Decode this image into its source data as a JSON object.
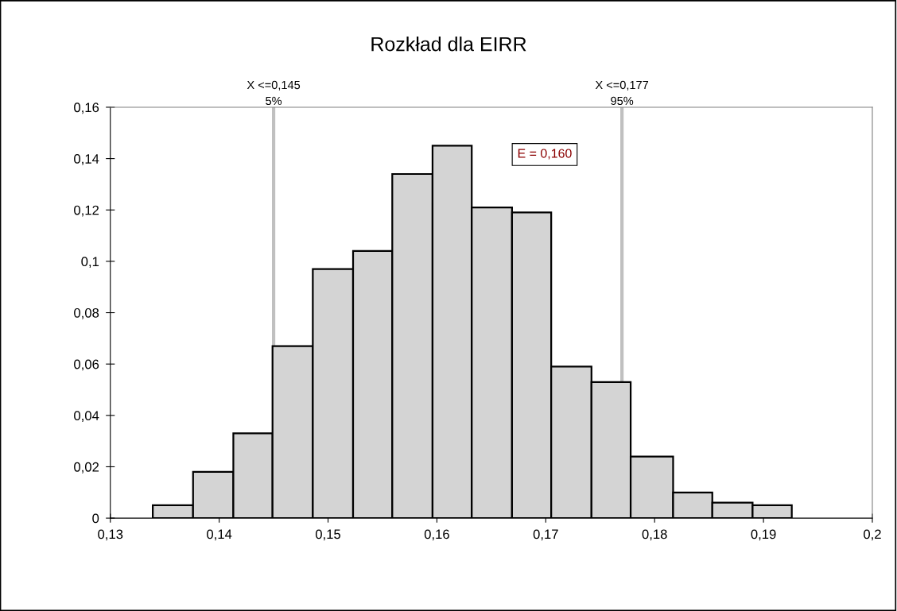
{
  "chart_data": {
    "type": "histogram",
    "title": "Rozkład dla EIRR",
    "bins": [
      0.1339,
      0.1376,
      0.1413,
      0.1449,
      0.1486,
      0.1523,
      0.1559,
      0.1596,
      0.1632,
      0.1669,
      0.1705,
      0.1742,
      0.1778,
      0.1817,
      0.1853,
      0.189,
      0.1926
    ],
    "values": [
      0.005,
      0.018,
      0.033,
      0.067,
      0.097,
      0.104,
      0.134,
      0.145,
      0.121,
      0.119,
      0.059,
      0.053,
      0.024,
      0.01,
      0.006,
      0.005
    ],
    "color": "#d4d4d4",
    "xlim": [
      0.13,
      0.2
    ],
    "xticks": [
      {
        "value": 0.13,
        "label": "0,13"
      },
      {
        "value": 0.14,
        "label": "0,14"
      },
      {
        "value": 0.15,
        "label": "0,15"
      },
      {
        "value": 0.16,
        "label": "0,16"
      },
      {
        "value": 0.17,
        "label": "0,17"
      },
      {
        "value": 0.18,
        "label": "0,18"
      },
      {
        "value": 0.19,
        "label": "0,19"
      },
      {
        "value": 0.2,
        "label": "0,2"
      }
    ],
    "ylim": [
      0,
      0.16
    ],
    "yticks": [
      0,
      {
        "value": 0.02,
        "label": "0,02"
      },
      {
        "value": 0.04,
        "label": "0,04"
      },
      {
        "value": 0.06,
        "label": "0,06"
      },
      {
        "value": 0.08,
        "label": "0,08"
      },
      {
        "value": 0.1,
        "label": "0,1"
      },
      {
        "value": 0.12,
        "label": "0,12"
      },
      {
        "value": 0.14,
        "label": "0,14"
      },
      {
        "value": 0.16,
        "label": "0,16"
      }
    ],
    "ref_lines": [
      {
        "axis": "x",
        "value": 0.145,
        "label": "X <=0,145\n5%",
        "color": "#c0c0c0"
      },
      {
        "axis": "x",
        "value": 0.177,
        "label": "X <=0,177\n95%",
        "color": "#c0c0c0"
      }
    ],
    "annotations": [
      "E = 0,160"
    ],
    "grid": false
  }
}
